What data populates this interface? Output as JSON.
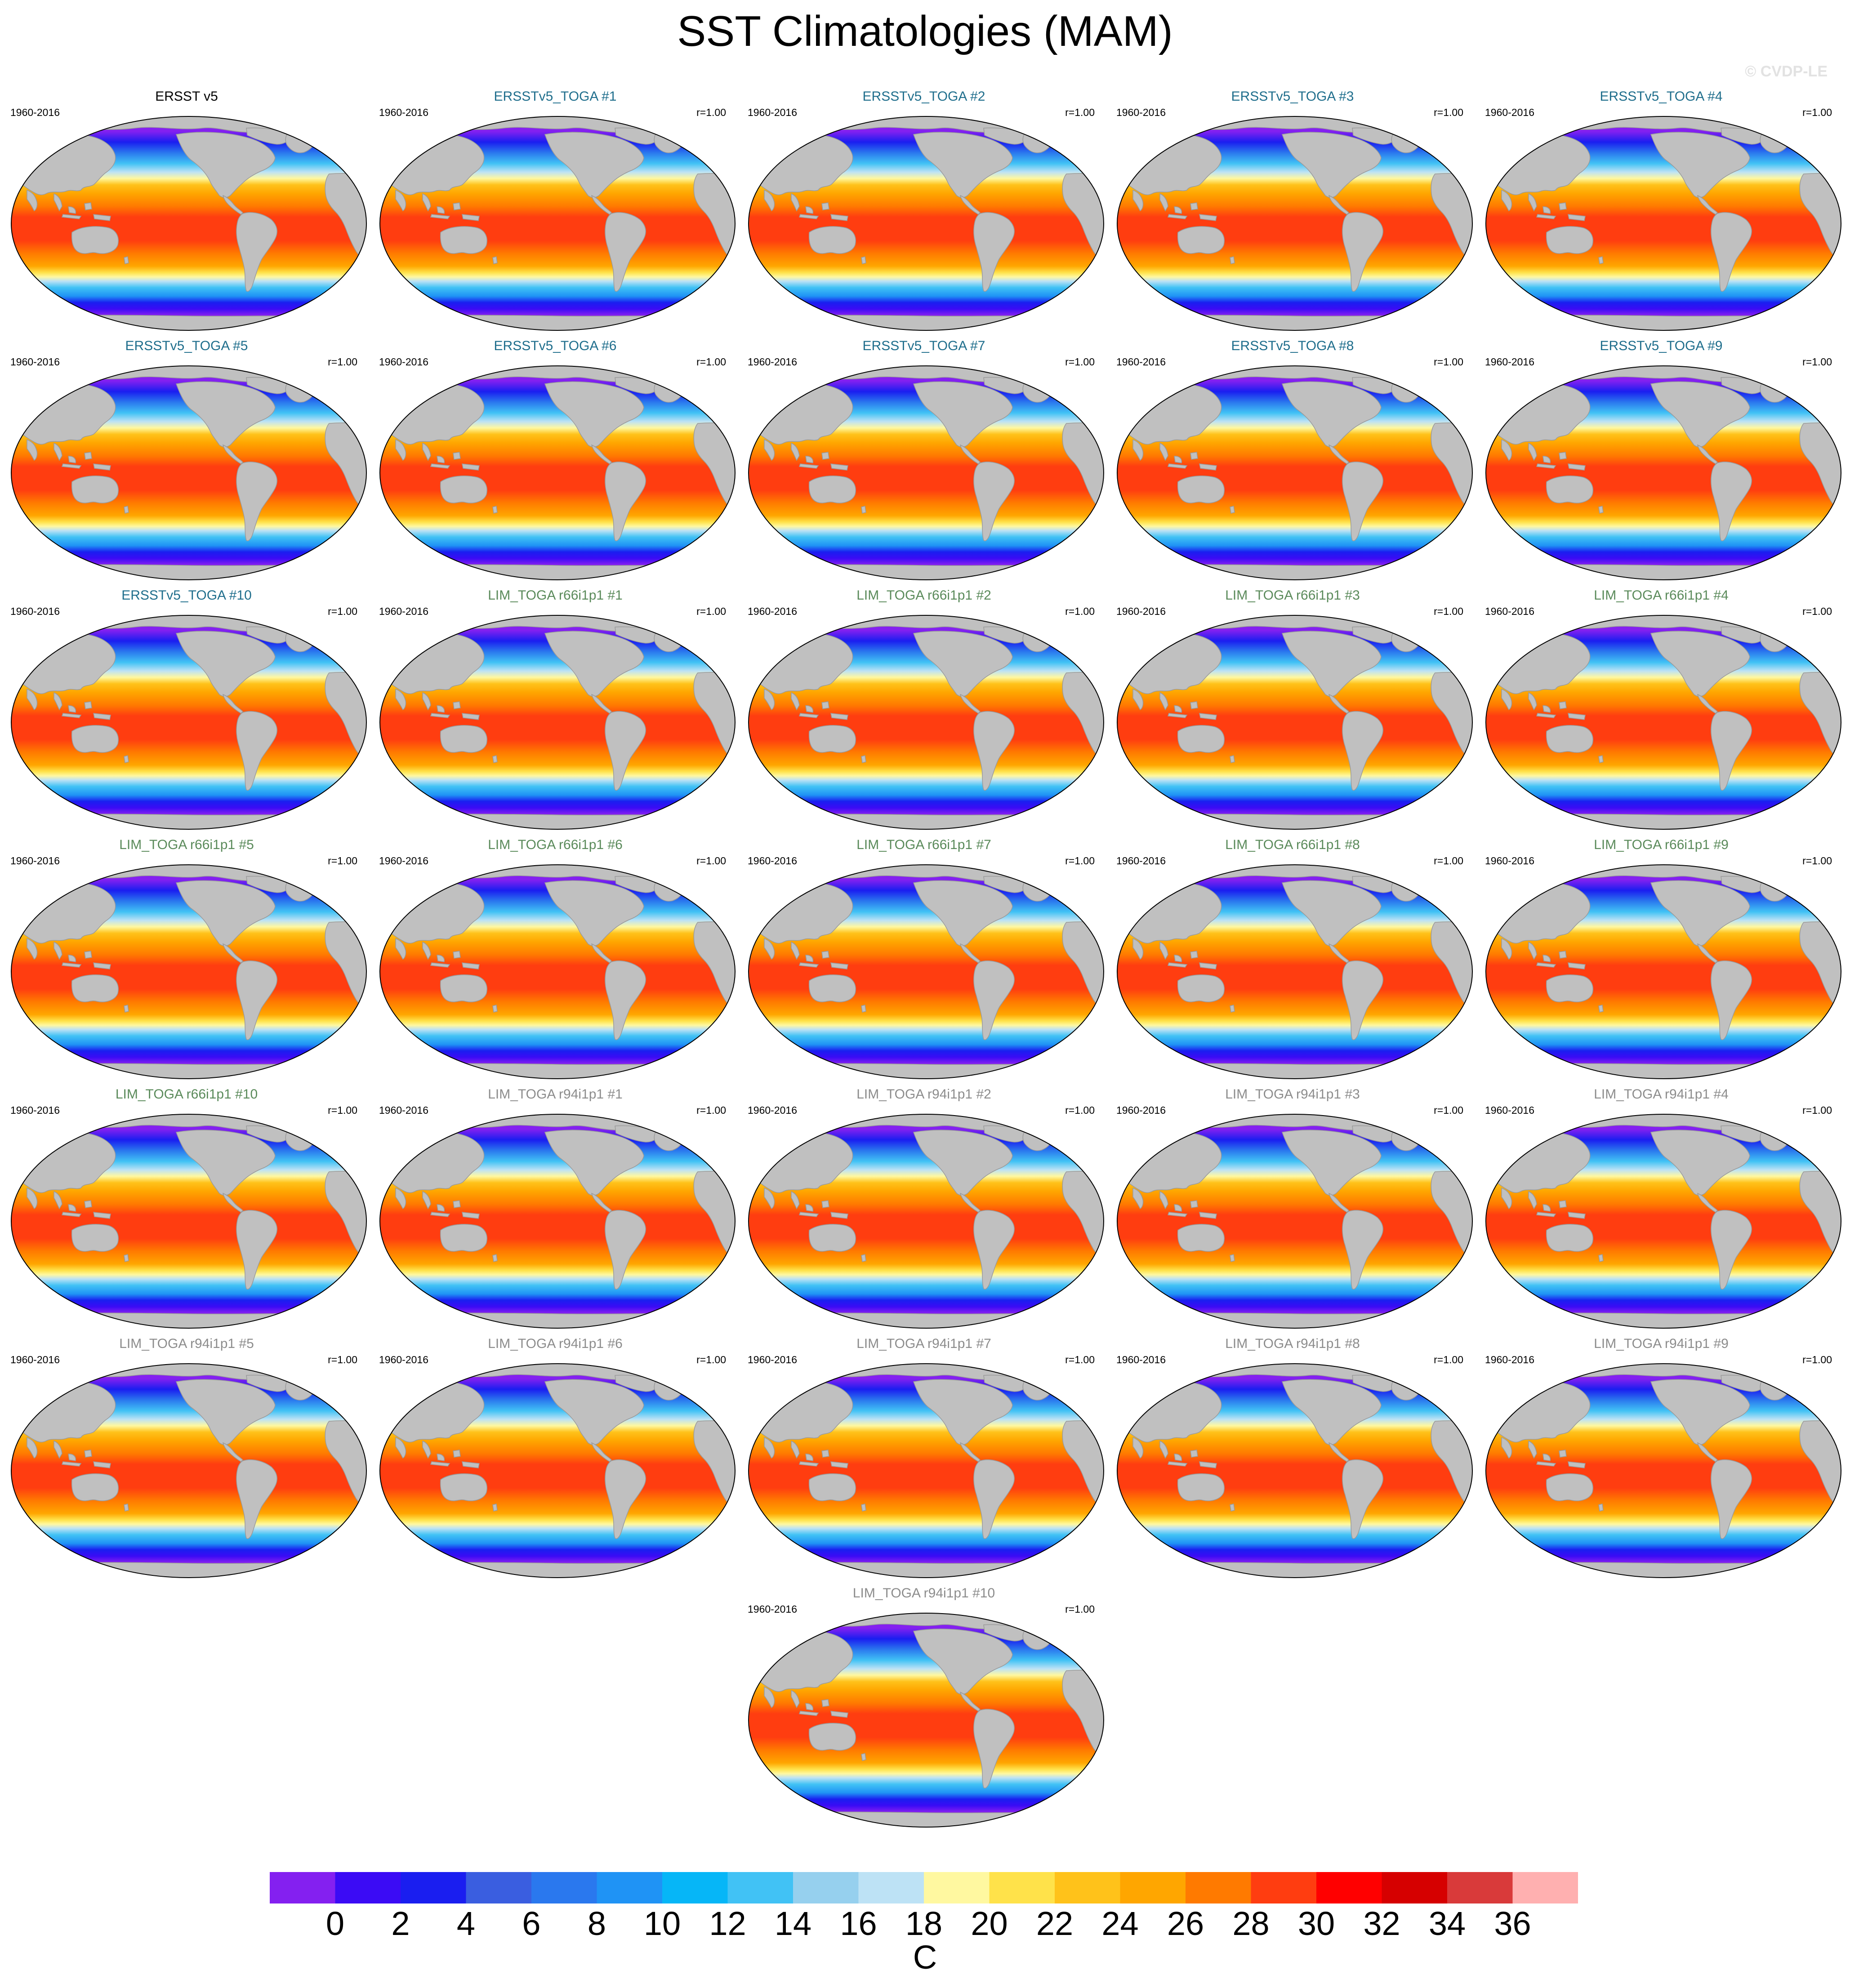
{
  "figure": {
    "title": "SST Climatologies (MAM)",
    "copyright": "© CVDP-LE",
    "units": "C"
  },
  "colors": {
    "land": "#c0c0c0",
    "title_obs": "#000000",
    "title_ersst_members": "#1f6e8c",
    "title_lim_r66": "#5a8a5a",
    "title_lim_r94": "#8c8c8c"
  },
  "colorbar": {
    "colors": [
      "#8420f0",
      "#3b0bf5",
      "#1a1ef0",
      "#3a5ee0",
      "#2a78ee",
      "#1f93f5",
      "#06b6f7",
      "#41c2f5",
      "#96d0ee",
      "#bde2f5",
      "#fff8a0",
      "#ffe24a",
      "#ffc21a",
      "#ffa600",
      "#ff7a00",
      "#ff3d10",
      "#ff0000",
      "#d60000",
      "#d93a3a",
      "#ffb0b0"
    ],
    "labels": [
      "0",
      "2",
      "4",
      "6",
      "8",
      "10",
      "12",
      "14",
      "16",
      "18",
      "20",
      "22",
      "24",
      "26",
      "28",
      "30",
      "32",
      "34",
      "36"
    ]
  },
  "chart_data": {
    "type": "map-panels",
    "title": "SST Climatologies (MAM)",
    "variable": "SST",
    "season": "MAM",
    "units": "C",
    "levels": [
      0,
      2,
      4,
      6,
      8,
      10,
      12,
      14,
      16,
      18,
      20,
      22,
      24,
      26,
      28,
      30,
      32,
      34,
      36
    ],
    "projection": "Robinson (global, centered on Pacific)",
    "panels": [
      {
        "title": "ERSST v5",
        "years": "1960-2016",
        "corr": "",
        "group": "obs"
      },
      {
        "title": "ERSSTv5_TOGA #1",
        "years": "1960-2016",
        "corr": "r=1.00",
        "group": "ersst"
      },
      {
        "title": "ERSSTv5_TOGA #2",
        "years": "1960-2016",
        "corr": "r=1.00",
        "group": "ersst"
      },
      {
        "title": "ERSSTv5_TOGA #3",
        "years": "1960-2016",
        "corr": "r=1.00",
        "group": "ersst"
      },
      {
        "title": "ERSSTv5_TOGA #4",
        "years": "1960-2016",
        "corr": "r=1.00",
        "group": "ersst"
      },
      {
        "title": "ERSSTv5_TOGA #5",
        "years": "1960-2016",
        "corr": "r=1.00",
        "group": "ersst"
      },
      {
        "title": "ERSSTv5_TOGA #6",
        "years": "1960-2016",
        "corr": "r=1.00",
        "group": "ersst"
      },
      {
        "title": "ERSSTv5_TOGA #7",
        "years": "1960-2016",
        "corr": "r=1.00",
        "group": "ersst"
      },
      {
        "title": "ERSSTv5_TOGA #8",
        "years": "1960-2016",
        "corr": "r=1.00",
        "group": "ersst"
      },
      {
        "title": "ERSSTv5_TOGA #9",
        "years": "1960-2016",
        "corr": "r=1.00",
        "group": "ersst"
      },
      {
        "title": "ERSSTv5_TOGA #10",
        "years": "1960-2016",
        "corr": "r=1.00",
        "group": "ersst"
      },
      {
        "title": "LIM_TOGA r66i1p1 #1",
        "years": "1960-2016",
        "corr": "r=1.00",
        "group": "r66"
      },
      {
        "title": "LIM_TOGA r66i1p1 #2",
        "years": "1960-2016",
        "corr": "r=1.00",
        "group": "r66"
      },
      {
        "title": "LIM_TOGA r66i1p1 #3",
        "years": "1960-2016",
        "corr": "r=1.00",
        "group": "r66"
      },
      {
        "title": "LIM_TOGA r66i1p1 #4",
        "years": "1960-2016",
        "corr": "r=1.00",
        "group": "r66"
      },
      {
        "title": "LIM_TOGA r66i1p1 #5",
        "years": "1960-2016",
        "corr": "r=1.00",
        "group": "r66"
      },
      {
        "title": "LIM_TOGA r66i1p1 #6",
        "years": "1960-2016",
        "corr": "r=1.00",
        "group": "r66"
      },
      {
        "title": "LIM_TOGA r66i1p1 #7",
        "years": "1960-2016",
        "corr": "r=1.00",
        "group": "r66"
      },
      {
        "title": "LIM_TOGA r66i1p1 #8",
        "years": "1960-2016",
        "corr": "r=1.00",
        "group": "r66"
      },
      {
        "title": "LIM_TOGA r66i1p1 #9",
        "years": "1960-2016",
        "corr": "r=1.00",
        "group": "r66"
      },
      {
        "title": "LIM_TOGA r66i1p1 #10",
        "years": "1960-2016",
        "corr": "r=1.00",
        "group": "r66"
      },
      {
        "title": "LIM_TOGA r94i1p1 #1",
        "years": "1960-2016",
        "corr": "r=1.00",
        "group": "r94"
      },
      {
        "title": "LIM_TOGA r94i1p1 #2",
        "years": "1960-2016",
        "corr": "r=1.00",
        "group": "r94"
      },
      {
        "title": "LIM_TOGA r94i1p1 #3",
        "years": "1960-2016",
        "corr": "r=1.00",
        "group": "r94"
      },
      {
        "title": "LIM_TOGA r94i1p1 #4",
        "years": "1960-2016",
        "corr": "r=1.00",
        "group": "r94"
      },
      {
        "title": "LIM_TOGA r94i1p1 #5",
        "years": "1960-2016",
        "corr": "r=1.00",
        "group": "r94"
      },
      {
        "title": "LIM_TOGA r94i1p1 #6",
        "years": "1960-2016",
        "corr": "r=1.00",
        "group": "r94"
      },
      {
        "title": "LIM_TOGA r94i1p1 #7",
        "years": "1960-2016",
        "corr": "r=1.00",
        "group": "r94"
      },
      {
        "title": "LIM_TOGA r94i1p1 #8",
        "years": "1960-2016",
        "corr": "r=1.00",
        "group": "r94"
      },
      {
        "title": "LIM_TOGA r94i1p1 #9",
        "years": "1960-2016",
        "corr": "r=1.00",
        "group": "r94"
      },
      {
        "title": "LIM_TOGA r94i1p1 #10",
        "years": "1960-2016",
        "corr": "r=1.00",
        "group": "r94"
      }
    ]
  }
}
